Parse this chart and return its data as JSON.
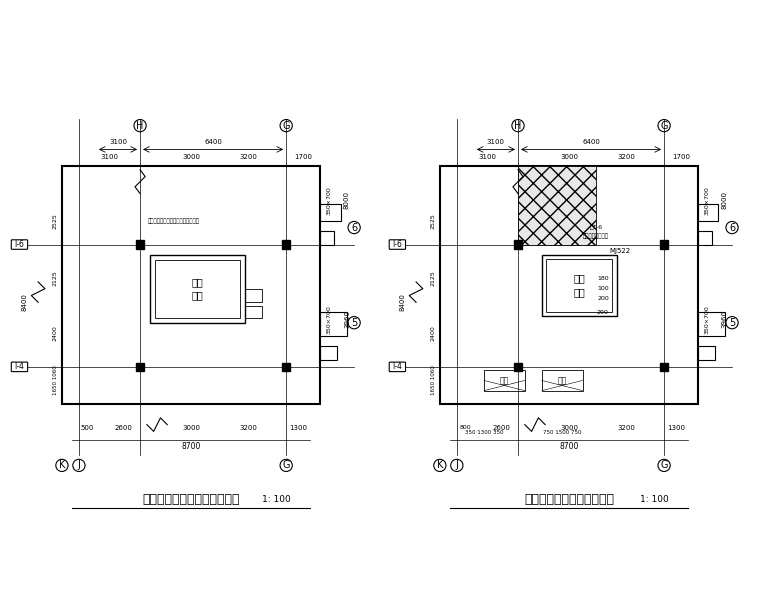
{
  "bg_color": "#ffffff",
  "line_color": "#000000",
  "gray_color": "#888888",
  "title1": "新增钢结构电梯负一层平面图",
  "title1_scale": "1: 100",
  "title2": "新增钢结构电梯一层平面图",
  "title2_scale": "1: 100",
  "hatch_color": "#555555"
}
